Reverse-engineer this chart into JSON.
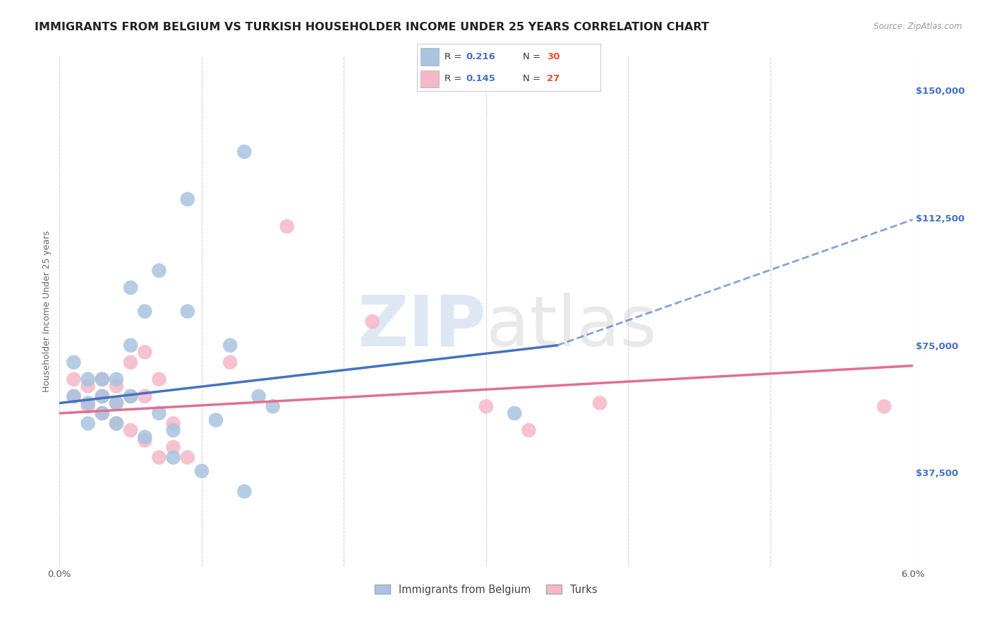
{
  "title": "IMMIGRANTS FROM BELGIUM VS TURKISH HOUSEHOLDER INCOME UNDER 25 YEARS CORRELATION CHART",
  "source": "Source: ZipAtlas.com",
  "ylabel": "Householder Income Under 25 years",
  "y_ticks": [
    37500,
    75000,
    112500,
    150000
  ],
  "y_tick_labels": [
    "$37,500",
    "$75,000",
    "$112,500",
    "$150,000"
  ],
  "x_min": 0.0,
  "x_max": 0.06,
  "y_min": 10000,
  "y_max": 160000,
  "watermark_zip": "ZIP",
  "watermark_atlas": "atlas",
  "legend_label_belgium": "Immigrants from Belgium",
  "legend_label_turks": "Turks",
  "color_belgium": "#a8c4e0",
  "color_turks": "#f5b8c8",
  "color_belgium_line": "#4472c4",
  "color_turks_line": "#e07090",
  "color_r_value": "#4472c4",
  "color_n_value": "#e05030",
  "belgium_x": [
    0.001,
    0.001,
    0.002,
    0.002,
    0.002,
    0.003,
    0.003,
    0.003,
    0.004,
    0.004,
    0.004,
    0.005,
    0.005,
    0.005,
    0.006,
    0.006,
    0.007,
    0.007,
    0.008,
    0.008,
    0.009,
    0.009,
    0.01,
    0.011,
    0.012,
    0.013,
    0.013,
    0.014,
    0.015,
    0.032
  ],
  "belgium_y": [
    70000,
    60000,
    65000,
    58000,
    52000,
    65000,
    60000,
    55000,
    65000,
    58000,
    52000,
    92000,
    75000,
    60000,
    85000,
    48000,
    97000,
    55000,
    50000,
    42000,
    118000,
    85000,
    38000,
    53000,
    75000,
    132000,
    32000,
    60000,
    57000,
    55000
  ],
  "turks_x": [
    0.001,
    0.001,
    0.002,
    0.002,
    0.003,
    0.003,
    0.003,
    0.004,
    0.004,
    0.004,
    0.005,
    0.005,
    0.005,
    0.006,
    0.006,
    0.006,
    0.007,
    0.007,
    0.008,
    0.008,
    0.009,
    0.012,
    0.016,
    0.022,
    0.03,
    0.033,
    0.038,
    0.058
  ],
  "turks_y": [
    65000,
    60000,
    63000,
    57000,
    65000,
    60000,
    55000,
    63000,
    58000,
    52000,
    70000,
    60000,
    50000,
    73000,
    60000,
    47000,
    65000,
    42000,
    52000,
    45000,
    42000,
    70000,
    110000,
    82000,
    57000,
    50000,
    58000,
    57000
  ],
  "background_color": "#ffffff",
  "grid_color": "#d8d8d8",
  "title_fontsize": 11.5,
  "axis_label_fontsize": 9,
  "tick_fontsize": 9.5
}
